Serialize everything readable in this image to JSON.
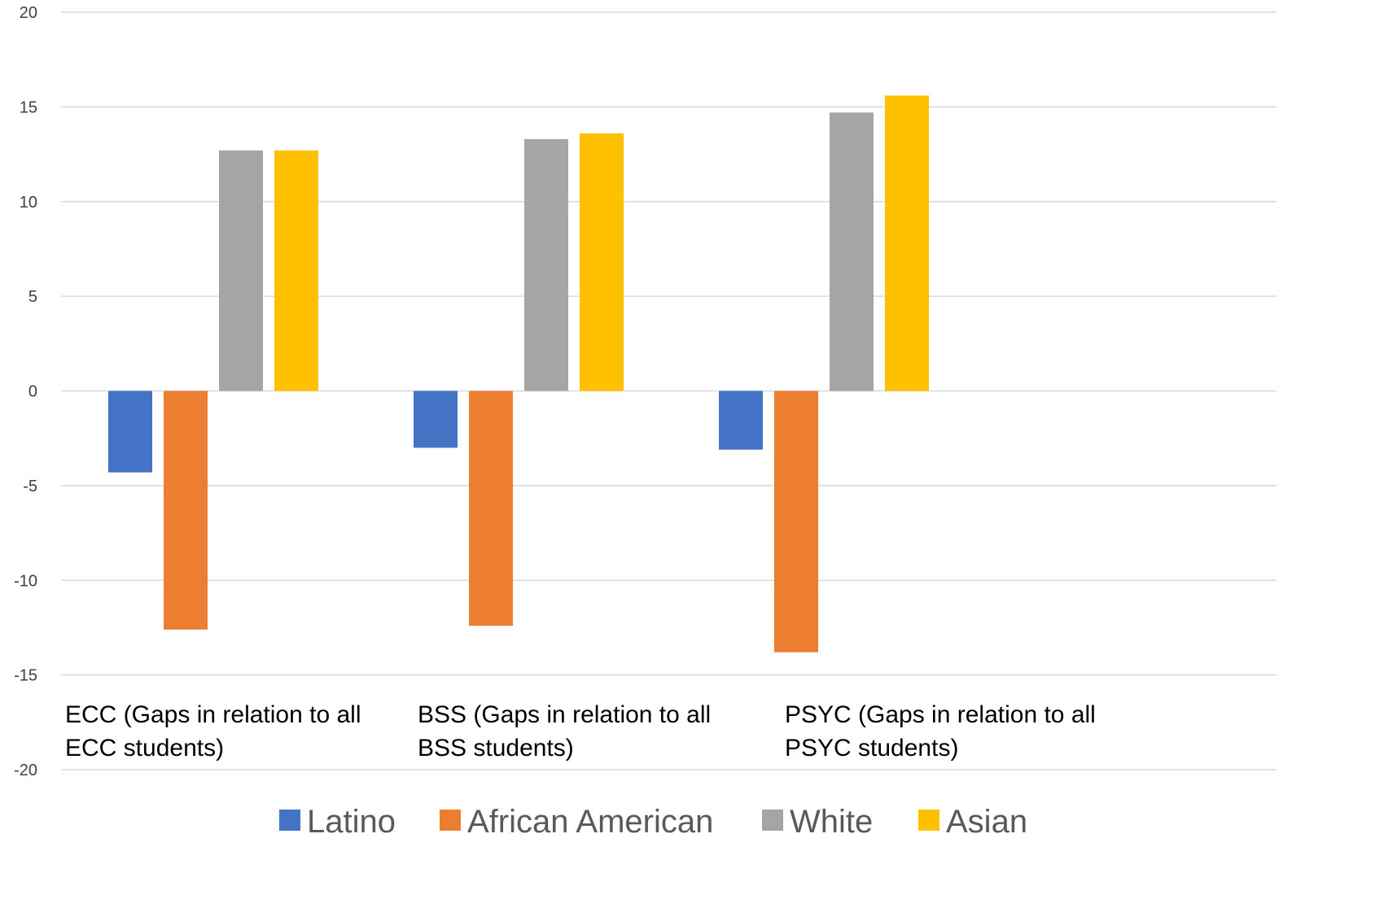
{
  "chart_data": {
    "type": "bar",
    "title": "",
    "xlabel": "",
    "ylabel": "",
    "ylim": [
      -20,
      20
    ],
    "yticks": [
      20,
      15,
      10,
      5,
      0,
      -5,
      -10,
      -15,
      -20
    ],
    "grid": true,
    "legend_position": "bottom",
    "categories": [
      "ECC (Gaps in relation to all ECC students)",
      "BSS (Gaps in relation to all BSS students)",
      "PSYC (Gaps in relation to all PSYC students)"
    ],
    "category_label_lines": [
      [
        "ECC (Gaps in relation to all",
        "ECC students)"
      ],
      [
        "BSS (Gaps in relation to all",
        "BSS students)"
      ],
      [
        "PSYC (Gaps in relation to all",
        "PSYC students)"
      ]
    ],
    "series": [
      {
        "name": "Latino",
        "color": "#4472C4",
        "values": [
          -4.3,
          -3.0,
          -3.1
        ]
      },
      {
        "name": "African American",
        "color": "#ED7D31",
        "values": [
          -12.6,
          -12.4,
          -13.8
        ]
      },
      {
        "name": "White",
        "color": "#A5A5A5",
        "values": [
          12.7,
          13.3,
          14.7
        ]
      },
      {
        "name": "Asian",
        "color": "#FFC000",
        "values": [
          12.7,
          13.6,
          15.6
        ]
      }
    ],
    "colors": {
      "gridline": "#D9D9D9",
      "tick_text": "#404040",
      "category_text": "#000000",
      "legend_text": "#595959"
    }
  }
}
